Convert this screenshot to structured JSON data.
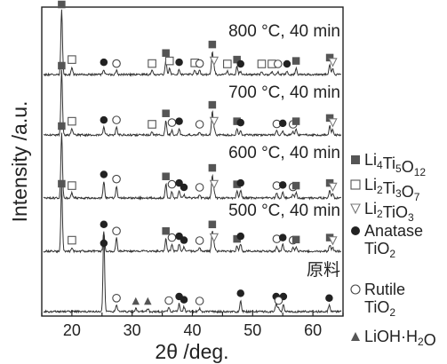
{
  "chart_data": {
    "type": "line",
    "title": "",
    "xlabel": "2θ /deg.",
    "ylabel": "Intensity /a.u.",
    "xlim": [
      15,
      65
    ],
    "x_ticks": [
      20,
      30,
      40,
      50,
      60
    ],
    "grid": false,
    "legend_position": "right",
    "legend": [
      {
        "key": "li4ti5o12",
        "symbol": "filled-square",
        "text": "Li4Ti5O12",
        "color": "#555555"
      },
      {
        "key": "li2ti3o7",
        "symbol": "open-square",
        "text": "Li2Ti3O7",
        "color": "#555555"
      },
      {
        "key": "li2tio3",
        "symbol": "open-triangle-down",
        "text": "Li2TiO3",
        "color": "#777777"
      },
      {
        "key": "anatase",
        "symbol": "filled-circle",
        "text": "Anatase TiO2",
        "color": "#222222"
      },
      {
        "key": "rutile",
        "symbol": "open-circle",
        "text": "Rutile TiO2",
        "color": "#444444"
      },
      {
        "key": "lioh",
        "symbol": "filled-triangle-up",
        "text": "LiOH·H2O",
        "color": "#555555"
      }
    ],
    "series": [
      {
        "name": "800 °C, 40 min",
        "peaks": [
          {
            "x": 18.3,
            "h": 1.0,
            "phase": "li4ti5o12"
          },
          {
            "x": 20.0,
            "h": 0.12,
            "phase": "li2ti3o7"
          },
          {
            "x": 25.3,
            "h": 0.08,
            "phase": "anatase"
          },
          {
            "x": 27.4,
            "h": 0.06,
            "phase": "rutile"
          },
          {
            "x": 33.3,
            "h": 0.06,
            "phase": "li2ti3o7"
          },
          {
            "x": 35.6,
            "h": 0.22,
            "phase": "li4ti5o12"
          },
          {
            "x": 36.2,
            "h": 0.1,
            "phase": "li2ti3o7"
          },
          {
            "x": 37.8,
            "h": 0.08,
            "phase": "anatase"
          },
          {
            "x": 40.4,
            "h": 0.07,
            "phase": "li2ti3o7"
          },
          {
            "x": 41.2,
            "h": 0.06,
            "phase": "rutile"
          },
          {
            "x": 43.3,
            "h": 0.35,
            "phase": "li4ti5o12"
          },
          {
            "x": 43.6,
            "h": 0.1,
            "phase": "li2tio3"
          },
          {
            "x": 45.8,
            "h": 0.05,
            "phase": "li2ti3o7"
          },
          {
            "x": 47.4,
            "h": 0.12,
            "phase": "li4ti5o12"
          },
          {
            "x": 48.0,
            "h": 0.05,
            "phase": "anatase"
          },
          {
            "x": 51.5,
            "h": 0.05,
            "phase": "li2ti3o7"
          },
          {
            "x": 53.2,
            "h": 0.05,
            "phase": "li2ti3o7"
          },
          {
            "x": 54.2,
            "h": 0.05,
            "phase": "rutile"
          },
          {
            "x": 55.7,
            "h": 0.05,
            "phase": "anatase"
          },
          {
            "x": 57.2,
            "h": 0.1,
            "phase": "li4ti5o12"
          },
          {
            "x": 62.8,
            "h": 0.15,
            "phase": "li4ti5o12"
          },
          {
            "x": 63.3,
            "h": 0.08,
            "phase": "li2tio3"
          }
        ]
      },
      {
        "name": "700 °C, 40 min",
        "peaks": [
          {
            "x": 18.3,
            "h": 1.0,
            "phase": "li4ti5o12"
          },
          {
            "x": 20.0,
            "h": 0.1,
            "phase": "li2ti3o7"
          },
          {
            "x": 25.3,
            "h": 0.12,
            "phase": "anatase"
          },
          {
            "x": 27.4,
            "h": 0.12,
            "phase": "rutile"
          },
          {
            "x": 33.3,
            "h": 0.05,
            "phase": "li2ti3o7"
          },
          {
            "x": 35.6,
            "h": 0.22,
            "phase": "li4ti5o12"
          },
          {
            "x": 36.6,
            "h": 0.08,
            "phase": "rutile"
          },
          {
            "x": 37.8,
            "h": 0.1,
            "phase": "anatase"
          },
          {
            "x": 41.2,
            "h": 0.05,
            "phase": "rutile"
          },
          {
            "x": 43.3,
            "h": 0.35,
            "phase": "li4ti5o12"
          },
          {
            "x": 43.6,
            "h": 0.1,
            "phase": "li2tio3"
          },
          {
            "x": 47.4,
            "h": 0.1,
            "phase": "li4ti5o12"
          },
          {
            "x": 48.0,
            "h": 0.08,
            "phase": "anatase"
          },
          {
            "x": 54.0,
            "h": 0.06,
            "phase": "rutile"
          },
          {
            "x": 55.0,
            "h": 0.07,
            "phase": "anatase"
          },
          {
            "x": 56.7,
            "h": 0.05,
            "phase": "rutile"
          },
          {
            "x": 57.2,
            "h": 0.1,
            "phase": "li4ti5o12"
          },
          {
            "x": 62.8,
            "h": 0.15,
            "phase": "li4ti5o12"
          },
          {
            "x": 63.3,
            "h": 0.08,
            "phase": "li2tio3"
          }
        ]
      },
      {
        "name": "600 °C, 40 min",
        "peaks": [
          {
            "x": 18.3,
            "h": 1.0,
            "phase": "li4ti5o12"
          },
          {
            "x": 20.0,
            "h": 0.08,
            "phase": "li2ti3o7"
          },
          {
            "x": 25.3,
            "h": 0.25,
            "phase": "anatase"
          },
          {
            "x": 27.4,
            "h": 0.18,
            "phase": "rutile"
          },
          {
            "x": 35.6,
            "h": 0.22,
            "phase": "li4ti5o12"
          },
          {
            "x": 36.6,
            "h": 0.1,
            "phase": "rutile"
          },
          {
            "x": 37.8,
            "h": 0.12,
            "phase": "anatase"
          },
          {
            "x": 38.6,
            "h": 0.05,
            "phase": "anatase"
          },
          {
            "x": 41.2,
            "h": 0.05,
            "phase": "rutile"
          },
          {
            "x": 43.3,
            "h": 0.35,
            "phase": "li4ti5o12"
          },
          {
            "x": 43.6,
            "h": 0.1,
            "phase": "li2tio3"
          },
          {
            "x": 47.4,
            "h": 0.1,
            "phase": "li4ti5o12"
          },
          {
            "x": 48.0,
            "h": 0.12,
            "phase": "anatase"
          },
          {
            "x": 54.0,
            "h": 0.08,
            "phase": "rutile"
          },
          {
            "x": 55.0,
            "h": 0.09,
            "phase": "anatase"
          },
          {
            "x": 56.7,
            "h": 0.06,
            "phase": "rutile"
          },
          {
            "x": 57.2,
            "h": 0.08,
            "phase": "li4ti5o12"
          },
          {
            "x": 62.8,
            "h": 0.12,
            "phase": "li4ti5o12"
          },
          {
            "x": 63.3,
            "h": 0.06,
            "phase": "li2tio3"
          }
        ]
      },
      {
        "name": "500 °C, 40 min",
        "peaks": [
          {
            "x": 18.3,
            "h": 1.0,
            "phase": "li4ti5o12"
          },
          {
            "x": 20.0,
            "h": 0.06,
            "phase": "li2ti3o7"
          },
          {
            "x": 25.3,
            "h": 0.3,
            "phase": "anatase"
          },
          {
            "x": 27.4,
            "h": 0.2,
            "phase": "rutile"
          },
          {
            "x": 35.6,
            "h": 0.2,
            "phase": "li4ti5o12"
          },
          {
            "x": 36.6,
            "h": 0.1,
            "phase": "rutile"
          },
          {
            "x": 37.8,
            "h": 0.12,
            "phase": "anatase"
          },
          {
            "x": 38.6,
            "h": 0.06,
            "phase": "anatase"
          },
          {
            "x": 41.2,
            "h": 0.05,
            "phase": "rutile"
          },
          {
            "x": 43.3,
            "h": 0.3,
            "phase": "li4ti5o12"
          },
          {
            "x": 43.6,
            "h": 0.1,
            "phase": "li2tio3"
          },
          {
            "x": 47.4,
            "h": 0.08,
            "phase": "li4ti5o12"
          },
          {
            "x": 48.0,
            "h": 0.12,
            "phase": "anatase"
          },
          {
            "x": 54.0,
            "h": 0.08,
            "phase": "rutile"
          },
          {
            "x": 55.0,
            "h": 0.1,
            "phase": "anatase"
          },
          {
            "x": 56.7,
            "h": 0.06,
            "phase": "rutile"
          },
          {
            "x": 57.2,
            "h": 0.07,
            "phase": "li4ti5o12"
          },
          {
            "x": 62.8,
            "h": 0.1,
            "phase": "li4ti5o12"
          },
          {
            "x": 63.3,
            "h": 0.05,
            "phase": "li2tio3"
          }
        ]
      },
      {
        "name": "原料",
        "peaks": [
          {
            "x": 25.3,
            "h": 1.0,
            "phase": "anatase"
          },
          {
            "x": 27.4,
            "h": 0.08,
            "phase": "rutile"
          },
          {
            "x": 30.6,
            "h": 0.04,
            "phase": "lioh"
          },
          {
            "x": 32.6,
            "h": 0.04,
            "phase": "lioh"
          },
          {
            "x": 36.1,
            "h": 0.05,
            "phase": "rutile"
          },
          {
            "x": 37.8,
            "h": 0.1,
            "phase": "anatase"
          },
          {
            "x": 38.6,
            "h": 0.06,
            "phase": "anatase"
          },
          {
            "x": 41.2,
            "h": 0.04,
            "phase": "rutile"
          },
          {
            "x": 48.0,
            "h": 0.14,
            "phase": "anatase"
          },
          {
            "x": 53.9,
            "h": 0.1,
            "phase": "anatase"
          },
          {
            "x": 55.1,
            "h": 0.1,
            "phase": "anatase"
          },
          {
            "x": 54.3,
            "h": 0.05,
            "phase": "rutile"
          },
          {
            "x": 62.7,
            "h": 0.08,
            "phase": "anatase"
          }
        ]
      }
    ]
  }
}
